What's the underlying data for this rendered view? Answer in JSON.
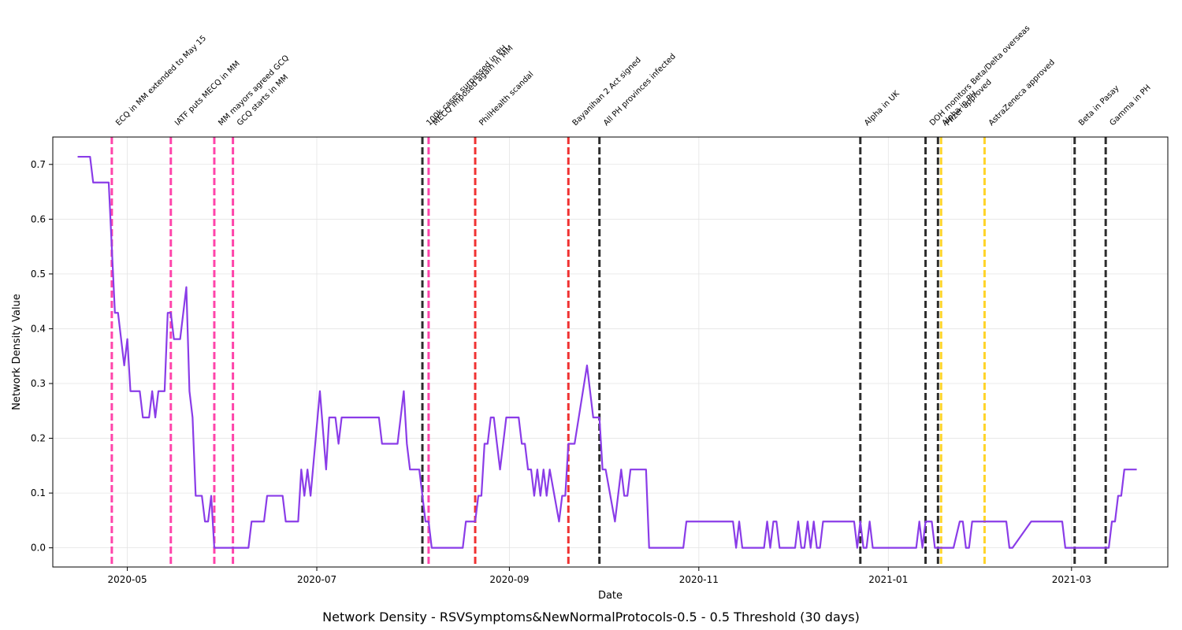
{
  "chart_data": {
    "type": "line",
    "title": "Network Density - RSVSymptoms&NewNormalProtocols-0.5 - 0.5 Threshold (30 days)",
    "xlabel": "Date",
    "ylabel": "Network Density Value",
    "xlim": [
      "2020-04-07",
      "2021-04-01"
    ],
    "ylim": [
      -0.035,
      0.75
    ],
    "grid": true,
    "x_ticks": [
      "2020-05-01",
      "2020-07-01",
      "2020-09-01",
      "2020-11-01",
      "2021-01-01",
      "2021-03-01"
    ],
    "x_tick_labels": [
      "2020-05",
      "2020-07",
      "2020-09",
      "2020-11",
      "2021-01",
      "2021-03"
    ],
    "y_ticks": [
      0.0,
      0.1,
      0.2,
      0.3,
      0.4,
      0.5,
      0.6,
      0.7
    ],
    "y_tick_labels": [
      "0.0",
      "0.1",
      "0.2",
      "0.3",
      "0.4",
      "0.5",
      "0.6",
      "0.7"
    ],
    "series": [
      {
        "color": "#8a3ce8",
        "points": [
          [
            "2020-04-15",
            0.714
          ],
          [
            "2020-04-19",
            0.714
          ],
          [
            "2020-04-20",
            0.667
          ],
          [
            "2020-04-25",
            0.667
          ],
          [
            "2020-04-27",
            0.429
          ],
          [
            "2020-04-28",
            0.429
          ],
          [
            "2020-04-30",
            0.333
          ],
          [
            "2020-05-01",
            0.381
          ],
          [
            "2020-05-02",
            0.286
          ],
          [
            "2020-05-05",
            0.286
          ],
          [
            "2020-05-06",
            0.238
          ],
          [
            "2020-05-08",
            0.238
          ],
          [
            "2020-05-09",
            0.286
          ],
          [
            "2020-05-10",
            0.238
          ],
          [
            "2020-05-11",
            0.286
          ],
          [
            "2020-05-13",
            0.286
          ],
          [
            "2020-05-14",
            0.429
          ],
          [
            "2020-05-15",
            0.429
          ],
          [
            "2020-05-16",
            0.381
          ],
          [
            "2020-05-18",
            0.381
          ],
          [
            "2020-05-20",
            0.476
          ],
          [
            "2020-05-21",
            0.286
          ],
          [
            "2020-05-22",
            0.238
          ],
          [
            "2020-05-23",
            0.095
          ],
          [
            "2020-05-25",
            0.095
          ],
          [
            "2020-05-26",
            0.048
          ],
          [
            "2020-05-27",
            0.048
          ],
          [
            "2020-05-28",
            0.095
          ],
          [
            "2020-05-29",
            0.0
          ],
          [
            "2020-06-09",
            0.0
          ],
          [
            "2020-06-10",
            0.048
          ],
          [
            "2020-06-14",
            0.048
          ],
          [
            "2020-06-15",
            0.095
          ],
          [
            "2020-06-20",
            0.095
          ],
          [
            "2020-06-21",
            0.048
          ],
          [
            "2020-06-25",
            0.048
          ],
          [
            "2020-06-26",
            0.143
          ],
          [
            "2020-06-27",
            0.095
          ],
          [
            "2020-06-28",
            0.143
          ],
          [
            "2020-06-29",
            0.095
          ],
          [
            "2020-07-02",
            0.286
          ],
          [
            "2020-07-04",
            0.143
          ],
          [
            "2020-07-05",
            0.238
          ],
          [
            "2020-07-07",
            0.238
          ],
          [
            "2020-07-08",
            0.19
          ],
          [
            "2020-07-09",
            0.238
          ],
          [
            "2020-07-21",
            0.238
          ],
          [
            "2020-07-22",
            0.19
          ],
          [
            "2020-07-27",
            0.19
          ],
          [
            "2020-07-29",
            0.286
          ],
          [
            "2020-07-30",
            0.19
          ],
          [
            "2020-07-31",
            0.143
          ],
          [
            "2020-08-03",
            0.143
          ],
          [
            "2020-08-05",
            0.048
          ],
          [
            "2020-08-06",
            0.048
          ],
          [
            "2020-08-07",
            0.0
          ],
          [
            "2020-08-17",
            0.0
          ],
          [
            "2020-08-18",
            0.048
          ],
          [
            "2020-08-21",
            0.048
          ],
          [
            "2020-08-22",
            0.095
          ],
          [
            "2020-08-23",
            0.095
          ],
          [
            "2020-08-24",
            0.19
          ],
          [
            "2020-08-25",
            0.19
          ],
          [
            "2020-08-26",
            0.238
          ],
          [
            "2020-08-27",
            0.238
          ],
          [
            "2020-08-28",
            0.19
          ],
          [
            "2020-08-29",
            0.143
          ],
          [
            "2020-08-30",
            0.19
          ],
          [
            "2020-08-31",
            0.238
          ],
          [
            "2020-09-04",
            0.238
          ],
          [
            "2020-09-05",
            0.19
          ],
          [
            "2020-09-06",
            0.19
          ],
          [
            "2020-09-07",
            0.143
          ],
          [
            "2020-09-08",
            0.143
          ],
          [
            "2020-09-09",
            0.095
          ],
          [
            "2020-09-10",
            0.143
          ],
          [
            "2020-09-11",
            0.095
          ],
          [
            "2020-09-12",
            0.143
          ],
          [
            "2020-09-13",
            0.095
          ],
          [
            "2020-09-14",
            0.143
          ],
          [
            "2020-09-17",
            0.048
          ],
          [
            "2020-09-18",
            0.095
          ],
          [
            "2020-09-19",
            0.095
          ],
          [
            "2020-09-20",
            0.19
          ],
          [
            "2020-09-22",
            0.19
          ],
          [
            "2020-09-26",
            0.333
          ],
          [
            "2020-09-28",
            0.238
          ],
          [
            "2020-09-30",
            0.238
          ],
          [
            "2020-10-01",
            0.143
          ],
          [
            "2020-10-02",
            0.143
          ],
          [
            "2020-10-05",
            0.048
          ],
          [
            "2020-10-07",
            0.143
          ],
          [
            "2020-10-08",
            0.095
          ],
          [
            "2020-10-09",
            0.095
          ],
          [
            "2020-10-10",
            0.143
          ],
          [
            "2020-10-15",
            0.143
          ],
          [
            "2020-10-16",
            0.0
          ],
          [
            "2020-10-27",
            0.0
          ],
          [
            "2020-10-28",
            0.048
          ],
          [
            "2020-11-12",
            0.048
          ],
          [
            "2020-11-13",
            0.0
          ],
          [
            "2020-11-14",
            0.048
          ],
          [
            "2020-11-15",
            0.0
          ],
          [
            "2020-11-22",
            0.0
          ],
          [
            "2020-11-23",
            0.048
          ],
          [
            "2020-11-24",
            0.0
          ],
          [
            "2020-11-25",
            0.048
          ],
          [
            "2020-11-26",
            0.048
          ],
          [
            "2020-11-27",
            0.0
          ],
          [
            "2020-12-02",
            0.0
          ],
          [
            "2020-12-03",
            0.048
          ],
          [
            "2020-12-04",
            0.0
          ],
          [
            "2020-12-05",
            0.0
          ],
          [
            "2020-12-06",
            0.048
          ],
          [
            "2020-12-07",
            0.0
          ],
          [
            "2020-12-08",
            0.048
          ],
          [
            "2020-12-09",
            0.0
          ],
          [
            "2020-12-10",
            0.0
          ],
          [
            "2020-12-11",
            0.048
          ],
          [
            "2020-12-21",
            0.048
          ],
          [
            "2020-12-22",
            0.0
          ],
          [
            "2020-12-23",
            0.048
          ],
          [
            "2020-12-24",
            0.0
          ],
          [
            "2020-12-25",
            0.0
          ],
          [
            "2020-12-26",
            0.048
          ],
          [
            "2020-12-27",
            0.0
          ],
          [
            "2021-01-10",
            0.0
          ],
          [
            "2021-01-11",
            0.048
          ],
          [
            "2021-01-12",
            0.0
          ],
          [
            "2021-01-13",
            0.048
          ],
          [
            "2021-01-15",
            0.048
          ],
          [
            "2021-01-16",
            0.0
          ],
          [
            "2021-01-22",
            0.0
          ],
          [
            "2021-01-24",
            0.048
          ],
          [
            "2021-01-25",
            0.048
          ],
          [
            "2021-01-26",
            0.0
          ],
          [
            "2021-01-27",
            0.0
          ],
          [
            "2021-01-28",
            0.048
          ],
          [
            "2021-02-08",
            0.048
          ],
          [
            "2021-02-09",
            0.0
          ],
          [
            "2021-02-10",
            0.0
          ],
          [
            "2021-02-16",
            0.048
          ],
          [
            "2021-02-26",
            0.048
          ],
          [
            "2021-02-27",
            0.0
          ],
          [
            "2021-03-13",
            0.0
          ],
          [
            "2021-03-14",
            0.048
          ],
          [
            "2021-03-15",
            0.048
          ],
          [
            "2021-03-16",
            0.095
          ],
          [
            "2021-03-17",
            0.095
          ],
          [
            "2021-03-18",
            0.143
          ],
          [
            "2021-03-22",
            0.143
          ]
        ]
      }
    ],
    "events": [
      {
        "date": "2020-04-26",
        "label": "ECQ in MM extended to May 15",
        "color": "#ff3aa6"
      },
      {
        "date": "2020-05-15",
        "label": "IATF puts MECQ in MM",
        "color": "#ff3aa6"
      },
      {
        "date": "2020-05-29",
        "label": "MM mayors agreed GCQ",
        "color": "#ff3aa6"
      },
      {
        "date": "2020-06-04",
        "label": "GCQ starts in MM",
        "color": "#ff3aa6"
      },
      {
        "date": "2020-08-04",
        "label": "100k cases surpassed in PH",
        "color": "#222222"
      },
      {
        "date": "2020-08-06",
        "label": "MECQ imposed again in MM",
        "color": "#ff3aa6"
      },
      {
        "date": "2020-08-21",
        "label": "PhilHealth scandal",
        "color": "#f02828"
      },
      {
        "date": "2020-09-20",
        "label": "Bayanihan 2 Act signed",
        "color": "#f02828"
      },
      {
        "date": "2020-09-30",
        "label": "All PH provinces infected",
        "color": "#222222"
      },
      {
        "date": "2020-12-23",
        "label": "Alpha in UK",
        "color": "#222222"
      },
      {
        "date": "2021-01-13",
        "label": "DOH monitors Beta/Delta overseas",
        "color": "#222222"
      },
      {
        "date": "2021-01-17",
        "label": "Alpha in PH",
        "color": "#222222"
      },
      {
        "date": "2021-01-18",
        "label": "Pfizer approved",
        "color": "#ffd21f"
      },
      {
        "date": "2021-02-01",
        "label": "AstraZeneca approved",
        "color": "#ffd21f"
      },
      {
        "date": "2021-03-02",
        "label": "Beta in Pasay",
        "color": "#222222"
      },
      {
        "date": "2021-03-12",
        "label": "Gamma in PH",
        "color": "#222222"
      }
    ]
  }
}
